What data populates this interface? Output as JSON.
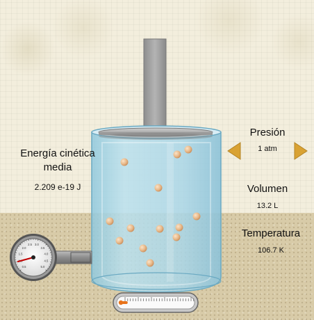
{
  "energy": {
    "title": "Energía cinética media",
    "value": "2.209 e-19  J"
  },
  "pressure": {
    "title": "Presión",
    "value": "1 atm"
  },
  "volume": {
    "title": "Volumen",
    "value": "13.2 L"
  },
  "temperature": {
    "title": "Temperatura",
    "value": "106.7 K",
    "thermometer_level": 0.12
  },
  "gauge": {
    "scale_labels": [
      "0.5",
      "1.0",
      "1.5",
      "2.0",
      "2.5",
      "3.0",
      "3.5",
      "4.0",
      "4.5",
      "5.0"
    ],
    "reading_atm": 1.0
  },
  "colors": {
    "gas_particle": "#e8b98a",
    "water": "#a9d6e8",
    "arrow": "#d9a233",
    "thermometer_liquid": "#e8731a"
  },
  "icons": {
    "decrease": "left-triangle-icon",
    "increase": "right-triangle-icon"
  }
}
